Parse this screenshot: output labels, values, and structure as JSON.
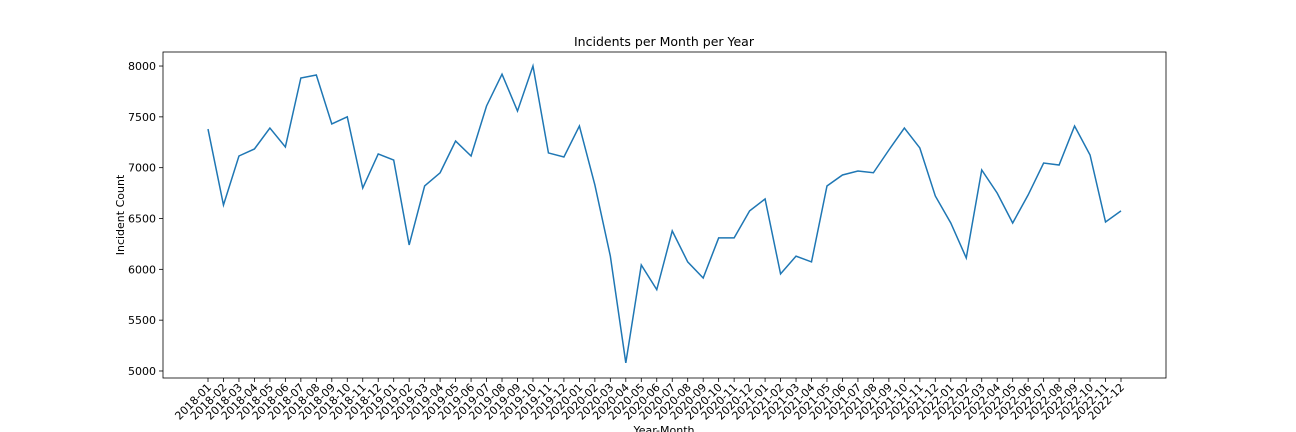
{
  "chart_data": {
    "type": "line",
    "title": "Incidents per Month per Year",
    "x_label": "Year-Month",
    "y_label": "Incident Count",
    "categories": [
      "2018-01",
      "2018-02",
      "2018-03",
      "2018-04",
      "2018-05",
      "2018-06",
      "2018-07",
      "2018-08",
      "2018-09",
      "2018-10",
      "2018-11",
      "2018-12",
      "2019-01",
      "2019-02",
      "2019-03",
      "2019-04",
      "2019-05",
      "2019-06",
      "2019-07",
      "2019-08",
      "2019-09",
      "2019-10",
      "2019-11",
      "2019-12",
      "2020-01",
      "2020-02",
      "2020-03",
      "2020-04",
      "2020-05",
      "2020-06",
      "2020-07",
      "2020-08",
      "2020-09",
      "2020-10",
      "2020-11",
      "2020-12",
      "2021-01",
      "2021-02",
      "2021-03",
      "2021-04",
      "2021-05",
      "2021-06",
      "2021-07",
      "2021-08",
      "2021-09",
      "2021-10",
      "2021-11",
      "2021-12",
      "2022-01",
      "2022-02",
      "2022-03",
      "2022-04",
      "2022-05",
      "2022-06",
      "2022-07",
      "2022-08",
      "2022-09",
      "2022-10",
      "2022-11",
      "2022-12"
    ],
    "values": [
      7380,
      6633,
      7115,
      7184,
      7390,
      7204,
      7882,
      7912,
      7430,
      7500,
      6800,
      7135,
      7075,
      6240,
      6820,
      6950,
      7262,
      7115,
      7607,
      7920,
      7557,
      8000,
      7145,
      7105,
      7410,
      6830,
      6130,
      5080,
      6043,
      5800,
      6378,
      6073,
      5915,
      6309,
      6310,
      6575,
      6692,
      5955,
      6130,
      6073,
      6820,
      6928,
      6967,
      6950,
      7174,
      7390,
      7194,
      6722,
      6456,
      6112,
      6977,
      6750,
      6456,
      6732,
      7046,
      7026,
      7410,
      7125,
      6466,
      6575
    ],
    "color": "#1f77b4",
    "ylim": [
      4931,
      8138
    ],
    "yticks": [
      5000,
      5500,
      6000,
      6500,
      7000,
      7500,
      8000
    ],
    "grid": false
  }
}
